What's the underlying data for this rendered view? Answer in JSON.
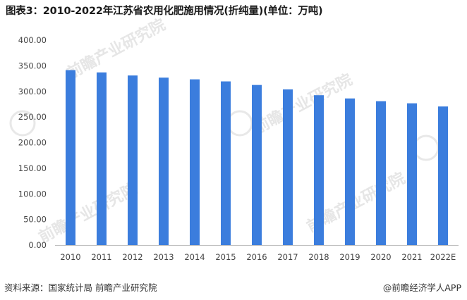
{
  "chart_data": {
    "type": "bar",
    "title": "图表3：2010-2022年江苏省农用化肥施用情况(折纯量)(单位：万吨)",
    "categories": [
      "2010",
      "2011",
      "2012",
      "2013",
      "2014",
      "2015",
      "2016",
      "2017",
      "2018",
      "2019",
      "2020",
      "2021",
      "2022E"
    ],
    "series": [
      {
        "values": [
          341.5,
          337.0,
          331.0,
          326.8,
          323.5,
          319.5,
          312.5,
          303.9,
          292.5,
          286.2,
          280.8,
          276.7,
          270.5
        ]
      }
    ],
    "ylim": [
      0,
      400
    ],
    "yticks": [
      "0.00",
      "50.00",
      "100.00",
      "150.00",
      "200.00",
      "250.00",
      "300.00",
      "350.00",
      "400.00"
    ],
    "grid": false,
    "bar_color": "#3b7ddd"
  },
  "footer": {
    "source": "资料来源：国家统计局 前瞻产业研究院",
    "brand": "@前瞻经济学人APP"
  },
  "watermark": {
    "text": "前瞻产业研究院",
    "color": "#e6e6e6"
  }
}
